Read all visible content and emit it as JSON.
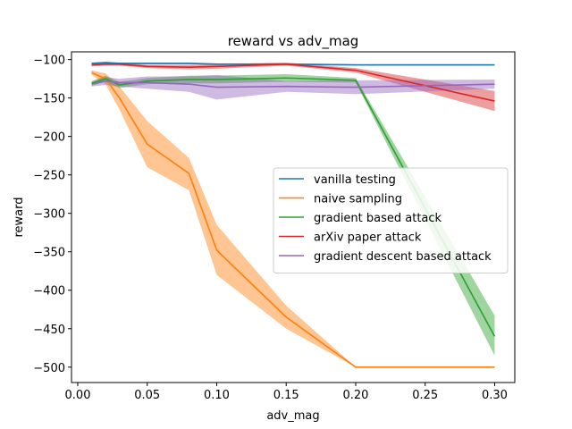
{
  "chart_data": {
    "type": "line",
    "title": "reward vs adv_mag",
    "xlabel": "adv_mag",
    "ylabel": "reward",
    "xlim": [
      -0.0045,
      0.3145
    ],
    "ylim": [
      -520,
      -90
    ],
    "xticks": [
      0.0,
      0.05,
      0.1,
      0.15,
      0.2,
      0.25,
      0.3
    ],
    "xtick_labels": [
      "0.00",
      "0.05",
      "0.10",
      "0.15",
      "0.20",
      "0.25",
      "0.30"
    ],
    "yticks": [
      -100,
      -150,
      -200,
      -250,
      -300,
      -350,
      -400,
      -450,
      -500
    ],
    "ytick_labels": [
      "−100",
      "−150",
      "−200",
      "−250",
      "−300",
      "−350",
      "−400",
      "−450",
      "−500"
    ],
    "grid": false,
    "legend_position": "center-right",
    "x": [
      0.01,
      0.02,
      0.03,
      0.05,
      0.08,
      0.1,
      0.15,
      0.2,
      0.3
    ],
    "series": [
      {
        "name": "vanilla testing",
        "color": "#1f77b4",
        "values": [
          -105,
          -104,
          -105,
          -105,
          -105,
          -106,
          -106,
          -107,
          -107
        ],
        "lower": [
          -106,
          -105,
          -106,
          -106,
          -106,
          -107,
          -107,
          -108,
          -108
        ],
        "upper": [
          -104,
          -103,
          -104,
          -104,
          -104,
          -105,
          -105,
          -106,
          -106
        ]
      },
      {
        "name": "naive sampling",
        "color": "#ff7f0e",
        "values": [
          -117,
          -125,
          -150,
          -210,
          -248,
          -348,
          -435,
          -500,
          -500
        ],
        "lower": [
          -120,
          -132,
          -165,
          -240,
          -270,
          -380,
          -450,
          -500,
          -500
        ],
        "upper": [
          -114,
          -118,
          -135,
          -180,
          -228,
          -315,
          -420,
          -500,
          -500
        ]
      },
      {
        "name": "gradient based attack",
        "color": "#2ca02c",
        "values": [
          -131,
          -125,
          -133,
          -128,
          -126,
          -126,
          -124,
          -127,
          -460
        ],
        "lower": [
          -134,
          -129,
          -137,
          -132,
          -131,
          -131,
          -129,
          -130,
          -485
        ],
        "upper": [
          -128,
          -121,
          -129,
          -124,
          -121,
          -121,
          -119,
          -124,
          -433
        ]
      },
      {
        "name": "arXiv paper attack",
        "color": "#d62728",
        "values": [
          -107,
          -106,
          -106,
          -109,
          -110,
          -109,
          -106,
          -114,
          -154
        ],
        "lower": [
          -109,
          -108,
          -108,
          -111,
          -113,
          -112,
          -108,
          -117,
          -167
        ],
        "upper": [
          -105,
          -104,
          -104,
          -107,
          -107,
          -106,
          -104,
          -111,
          -141
        ]
      },
      {
        "name": "gradient descent based attack",
        "color": "#9467bd",
        "values": [
          -132,
          -128,
          -130,
          -130,
          -132,
          -136,
          -135,
          -136,
          -132
        ],
        "lower": [
          -135,
          -133,
          -135,
          -138,
          -142,
          -152,
          -142,
          -145,
          -138
        ],
        "upper": [
          -129,
          -123,
          -125,
          -122,
          -122,
          -120,
          -128,
          -127,
          -126
        ]
      }
    ]
  }
}
